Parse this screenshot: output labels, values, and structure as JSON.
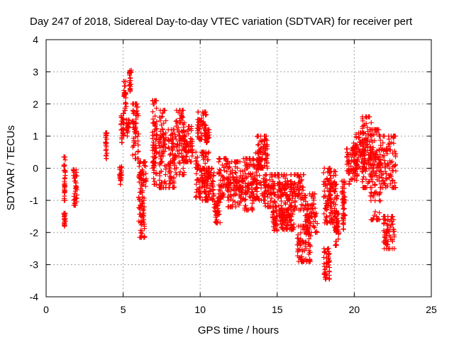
{
  "chart_data": {
    "type": "scatter",
    "title": "Day 247 of 2018, Sidereal Day-to-day VTEC variation (SDTVAR) for receiver pert",
    "xlabel": "GPS time / hours",
    "ylabel": "SDTVAR / TECUs",
    "xlim": [
      0,
      25
    ],
    "ylim": [
      -4,
      4
    ],
    "xticks": [
      0,
      5,
      10,
      15,
      20,
      25
    ],
    "yticks": [
      -4,
      -3,
      -2,
      -1,
      0,
      1,
      2,
      3,
      4
    ],
    "grid": true,
    "marker": "+",
    "color": "#ff0000",
    "segments": [
      {
        "name": "seg-1.2h-low",
        "x": [
          1.15,
          1.25
        ],
        "y": [
          -1.8,
          -1.4
        ]
      },
      {
        "name": "seg-1.2h-high",
        "x": [
          1.15,
          1.25
        ],
        "y": [
          -1.0,
          0.35
        ]
      },
      {
        "name": "seg-1.8h",
        "x": [
          1.75,
          2.0
        ],
        "y": [
          -1.15,
          -0.05
        ]
      },
      {
        "name": "seg-3.9h",
        "x": [
          3.85,
          3.95
        ],
        "y": [
          0.3,
          1.1
        ]
      },
      {
        "name": "seg-4.8h",
        "x": [
          4.75,
          4.9
        ],
        "y": [
          -0.5,
          0.05
        ]
      },
      {
        "name": "seg-4.9h",
        "x": [
          4.85,
          5.05
        ],
        "y": [
          0.8,
          1.7
        ]
      },
      {
        "name": "seg-5.1h",
        "x": [
          5.05,
          5.2
        ],
        "y": [
          1.8,
          2.7
        ]
      },
      {
        "name": "seg-5.3h",
        "x": [
          5.2,
          5.4
        ],
        "y": [
          1.0,
          1.5
        ]
      },
      {
        "name": "seg-5.5h",
        "x": [
          5.4,
          5.55
        ],
        "y": [
          2.4,
          3.05
        ]
      },
      {
        "name": "seg-5.8h",
        "x": [
          5.6,
          6.0
        ],
        "y": [
          0.3,
          2.0
        ]
      },
      {
        "name": "seg-6.2h",
        "x": [
          6.0,
          6.4
        ],
        "y": [
          -2.15,
          -0.9
        ]
      },
      {
        "name": "seg-6.3h",
        "x": [
          6.0,
          6.5
        ],
        "y": [
          -0.75,
          0.2
        ]
      },
      {
        "name": "seg-7.0h",
        "x": [
          6.9,
          7.2
        ],
        "y": [
          -0.5,
          2.1
        ]
      },
      {
        "name": "seg-7.5h",
        "x": [
          7.3,
          7.8
        ],
        "y": [
          -0.6,
          1.8
        ]
      },
      {
        "name": "seg-8.1h",
        "x": [
          7.9,
          8.4
        ],
        "y": [
          -0.6,
          1.2
        ]
      },
      {
        "name": "seg-8.6h",
        "x": [
          8.4,
          9.0
        ],
        "y": [
          -0.2,
          1.8
        ]
      },
      {
        "name": "seg-9.2h",
        "x": [
          8.9,
          9.5
        ],
        "y": [
          0.2,
          1.3
        ]
      },
      {
        "name": "seg-10.1h-a",
        "x": [
          9.8,
          10.4
        ],
        "y": [
          0.9,
          1.75
        ]
      },
      {
        "name": "seg-10.5h-a",
        "x": [
          10.3,
          10.6
        ],
        "y": [
          0.8,
          1.2
        ]
      },
      {
        "name": "seg-10.1h-b",
        "x": [
          9.7,
          10.6
        ],
        "y": [
          -0.9,
          0.5
        ]
      },
      {
        "name": "seg-10.4h",
        "x": [
          10.1,
          10.9
        ],
        "y": [
          -1.0,
          0.0
        ]
      },
      {
        "name": "seg-11.0h",
        "x": [
          10.9,
          11.3
        ],
        "y": [
          -1.7,
          -0.9
        ]
      },
      {
        "name": "seg-11.5h",
        "x": [
          11.2,
          11.9
        ],
        "y": [
          -0.9,
          0.3
        ]
      },
      {
        "name": "seg-12.2h",
        "x": [
          11.8,
          12.7
        ],
        "y": [
          -1.2,
          0.2
        ]
      },
      {
        "name": "seg-13.0h",
        "x": [
          12.7,
          13.4
        ],
        "y": [
          -1.3,
          0.3
        ]
      },
      {
        "name": "seg-13.6h",
        "x": [
          13.4,
          14.2
        ],
        "y": [
          -1.0,
          0.3
        ]
      },
      {
        "name": "seg-13.8h",
        "x": [
          13.6,
          14.4
        ],
        "y": [
          0.0,
          1.0
        ]
      },
      {
        "name": "seg-14.4h",
        "x": [
          14.2,
          14.9
        ],
        "y": [
          -1.2,
          -0.2
        ]
      },
      {
        "name": "seg-14.9h",
        "x": [
          14.7,
          15.0
        ],
        "y": [
          -1.95,
          -1.2
        ]
      },
      {
        "name": "seg-15.4h",
        "x": [
          15.0,
          15.8
        ],
        "y": [
          -1.3,
          -0.2
        ]
      },
      {
        "name": "seg-15.6h",
        "x": [
          15.1,
          16.1
        ],
        "y": [
          -1.9,
          -1.3
        ]
      },
      {
        "name": "seg-16.3h",
        "x": [
          15.8,
          16.8
        ],
        "y": [
          -1.3,
          -0.2
        ]
      },
      {
        "name": "seg-16.7h",
        "x": [
          16.3,
          17.2
        ],
        "y": [
          -2.9,
          -1.8
        ]
      },
      {
        "name": "seg-17.2h",
        "x": [
          16.8,
          17.6
        ],
        "y": [
          -2.0,
          -0.8
        ]
      },
      {
        "name": "seg-18.0h",
        "x": [
          18.0,
          18.5
        ],
        "y": [
          -1.7,
          0.0
        ]
      },
      {
        "name": "seg-18.2h",
        "x": [
          18.0,
          18.4
        ],
        "y": [
          -3.45,
          -2.5
        ]
      },
      {
        "name": "seg-18.5h",
        "x": [
          18.4,
          18.9
        ],
        "y": [
          -1.7,
          -0.1
        ]
      },
      {
        "name": "seg-18.9h",
        "x": [
          18.7,
          19.0
        ],
        "y": [
          -2.4,
          -1.4
        ]
      },
      {
        "name": "seg-19.4h",
        "x": [
          19.2,
          19.4
        ],
        "y": [
          -1.9,
          -0.4
        ]
      },
      {
        "name": "seg-19.8h",
        "x": [
          19.5,
          20.2
        ],
        "y": [
          -0.5,
          0.6
        ]
      },
      {
        "name": "seg-20.2h",
        "x": [
          19.9,
          20.7
        ],
        "y": [
          0.0,
          1.1
        ]
      },
      {
        "name": "seg-20.9h",
        "x": [
          20.5,
          21.1
        ],
        "y": [
          -0.6,
          1.6
        ]
      },
      {
        "name": "seg-21.5h",
        "x": [
          21.0,
          21.7
        ],
        "y": [
          -1.6,
          1.2
        ]
      },
      {
        "name": "seg-22.2h",
        "x": [
          21.6,
          22.7
        ],
        "y": [
          -0.6,
          1.0
        ]
      },
      {
        "name": "seg-22.0h",
        "x": [
          21.9,
          22.6
        ],
        "y": [
          -2.5,
          -1.5
        ]
      }
    ]
  }
}
